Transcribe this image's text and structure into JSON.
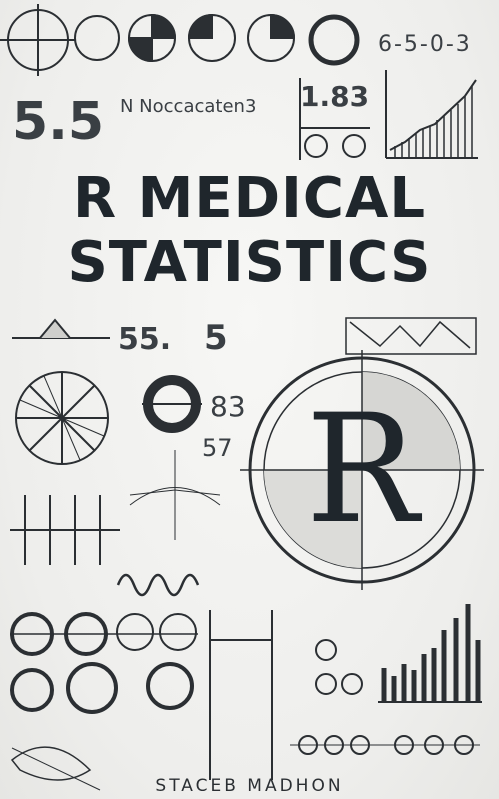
{
  "cover": {
    "title_line1": "R MEDICAL",
    "title_line2": "STATISTICS",
    "author": "STACEB MADHON",
    "emblem_letter": "R"
  },
  "doodles": {
    "top_left_number": "5.5",
    "header_scribble": "N Noccacaten3",
    "top_mid_number": "1.83",
    "top_right_sequence": "6-5-0-3",
    "mid_number_a": "55.",
    "mid_number_b": "5",
    "mid_number_83": "83",
    "mid_number_57": "57"
  }
}
